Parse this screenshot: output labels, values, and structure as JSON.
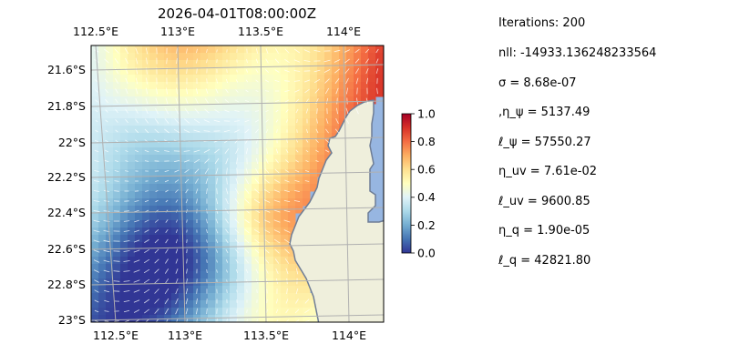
{
  "map": {
    "title": "2026-04-01T08:00:00Z",
    "top_lon_labels": [
      "112.5°E",
      "113°E",
      "113.5°E",
      "114°E"
    ],
    "bottom_lon_labels": [
      "112.5°E",
      "113°E",
      "113.5°E",
      "114°E"
    ],
    "lat_labels": [
      "21.6°S",
      "21.8°S",
      "22°S",
      "22.2°S",
      "22.4°S",
      "22.6°S",
      "22.8°S",
      "23°S"
    ],
    "field": "scalar heatmap with velocity quiver arrows",
    "colormap": "RdYlBu_r",
    "land_color": "#efefdc",
    "ocean_color": "#97b6e1",
    "coast_color": "#6e7d96",
    "grid_color": "#b0b0b0",
    "arrow_color": "#ffffff",
    "gridlines": true
  },
  "colorbar": {
    "ticks": [
      "1.0",
      "0.8",
      "0.6",
      "0.4",
      "0.2",
      "0.0"
    ],
    "range": [
      0.0,
      1.0
    ]
  },
  "params": [
    "Iterations: 200",
    "nll: -14933.136248233564",
    "σ = 8.68e-07",
    ",η_ψ = 5137.49",
    "ℓ_ψ = 57550.27",
    "η_uv = 7.61e-02",
    "ℓ_uv = 9600.85",
    "η_q = 1.90e-05",
    "ℓ_q = 42821.80"
  ]
}
